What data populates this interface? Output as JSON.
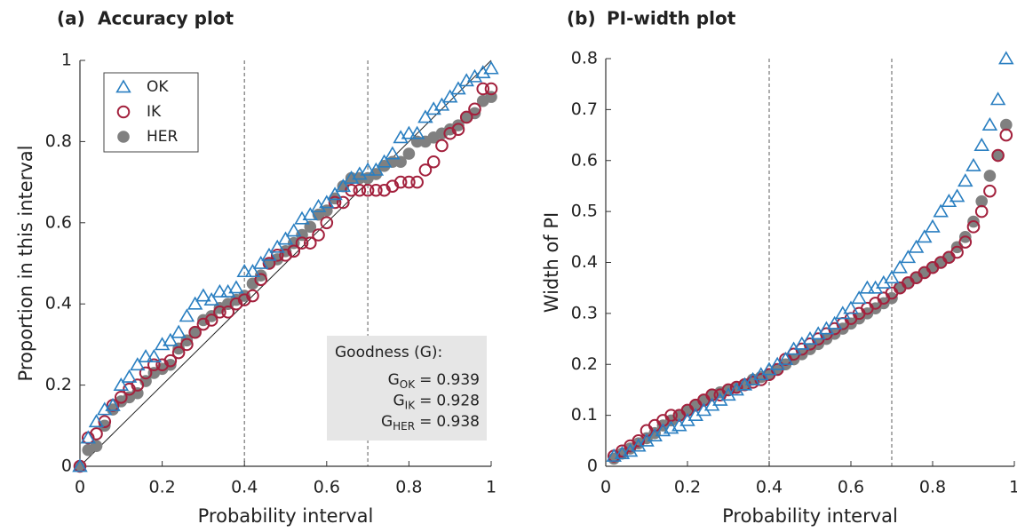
{
  "chart_data": [
    {
      "type": "scatter",
      "panel": "(a)",
      "title": "Accuracy plot",
      "xlabel": "Probability interval",
      "ylabel": "Proportion in this interval",
      "xlim": [
        0,
        1
      ],
      "ylim": [
        0,
        1
      ],
      "xticks": [
        0,
        0.2,
        0.4,
        0.6,
        0.8,
        1
      ],
      "yticks": [
        0,
        0.2,
        0.4,
        0.6,
        0.8,
        1
      ],
      "vlines": [
        0.4,
        0.7
      ],
      "diagonal": true,
      "legend": "upper left",
      "x": [
        0,
        0.02,
        0.04,
        0.06,
        0.08,
        0.1,
        0.12,
        0.14,
        0.16,
        0.18,
        0.2,
        0.22,
        0.24,
        0.26,
        0.28,
        0.3,
        0.32,
        0.34,
        0.36,
        0.38,
        0.4,
        0.42,
        0.44,
        0.46,
        0.48,
        0.5,
        0.52,
        0.54,
        0.56,
        0.58,
        0.6,
        0.62,
        0.64,
        0.66,
        0.68,
        0.7,
        0.72,
        0.74,
        0.76,
        0.78,
        0.8,
        0.82,
        0.84,
        0.86,
        0.88,
        0.9,
        0.92,
        0.94,
        0.96,
        0.98,
        1
      ],
      "series": [
        {
          "name": "OK",
          "color": "#2a7fc1",
          "marker": "triangle",
          "values": [
            0,
            0.07,
            0.11,
            0.14,
            0.15,
            0.2,
            0.22,
            0.25,
            0.27,
            0.27,
            0.3,
            0.31,
            0.33,
            0.37,
            0.4,
            0.42,
            0.41,
            0.43,
            0.43,
            0.44,
            0.48,
            0.48,
            0.5,
            0.52,
            0.54,
            0.56,
            0.58,
            0.61,
            0.62,
            0.64,
            0.65,
            0.67,
            0.69,
            0.71,
            0.72,
            0.73,
            0.73,
            0.75,
            0.77,
            0.81,
            0.82,
            0.82,
            0.86,
            0.88,
            0.89,
            0.91,
            0.93,
            0.95,
            0.96,
            0.97,
            0.98
          ]
        },
        {
          "name": "IK",
          "color": "#a3213d",
          "marker": "circle",
          "values": [
            0,
            0.07,
            0.08,
            0.11,
            0.15,
            0.17,
            0.19,
            0.2,
            0.23,
            0.25,
            0.25,
            0.26,
            0.28,
            0.3,
            0.33,
            0.35,
            0.36,
            0.38,
            0.38,
            0.4,
            0.41,
            0.42,
            0.46,
            0.5,
            0.52,
            0.52,
            0.53,
            0.55,
            0.55,
            0.57,
            0.6,
            0.65,
            0.65,
            0.68,
            0.68,
            0.68,
            0.68,
            0.68,
            0.69,
            0.7,
            0.7,
            0.7,
            0.73,
            0.75,
            0.79,
            0.82,
            0.83,
            0.86,
            0.88,
            0.93,
            0.93
          ]
        },
        {
          "name": "HER",
          "color": "#808080",
          "marker": "dot",
          "values": [
            0,
            0.04,
            0.05,
            0.1,
            0.14,
            0.16,
            0.17,
            0.18,
            0.21,
            0.23,
            0.24,
            0.25,
            0.29,
            0.31,
            0.33,
            0.36,
            0.37,
            0.39,
            0.4,
            0.41,
            0.42,
            0.45,
            0.47,
            0.5,
            0.51,
            0.53,
            0.55,
            0.57,
            0.59,
            0.62,
            0.63,
            0.66,
            0.69,
            0.71,
            0.71,
            0.71,
            0.72,
            0.74,
            0.75,
            0.75,
            0.77,
            0.8,
            0.8,
            0.81,
            0.82,
            0.83,
            0.84,
            0.86,
            0.87,
            0.9,
            0.91
          ]
        }
      ],
      "annotation": {
        "title": "Goodness (G):",
        "items": [
          {
            "symbol": "G",
            "subscript": "OK",
            "sign": "=",
            "value": 0.939
          },
          {
            "symbol": "G",
            "subscript": "IK",
            "sign": "=",
            "value": 0.928
          },
          {
            "symbol": "G",
            "subscript": "HER",
            "sign": "=",
            "value": 0.938
          }
        ]
      }
    },
    {
      "type": "scatter",
      "panel": "(b)",
      "title": "PI-width plot",
      "xlabel": "Probability interval",
      "ylabel": "Width of PI",
      "xlim": [
        0,
        1
      ],
      "ylim": [
        0,
        0.8
      ],
      "xticks": [
        0,
        0.2,
        0.4,
        0.6,
        0.8,
        1
      ],
      "yticks": [
        0,
        0.1,
        0.2,
        0.3,
        0.4,
        0.5,
        0.6,
        0.7,
        0.8
      ],
      "vlines": [
        0.4,
        0.7
      ],
      "x": [
        0.02,
        0.04,
        0.06,
        0.08,
        0.1,
        0.12,
        0.14,
        0.16,
        0.18,
        0.2,
        0.22,
        0.24,
        0.26,
        0.28,
        0.3,
        0.32,
        0.34,
        0.36,
        0.38,
        0.4,
        0.42,
        0.44,
        0.46,
        0.48,
        0.5,
        0.52,
        0.54,
        0.56,
        0.58,
        0.6,
        0.62,
        0.64,
        0.66,
        0.68,
        0.7,
        0.72,
        0.74,
        0.76,
        0.78,
        0.8,
        0.82,
        0.84,
        0.86,
        0.88,
        0.9,
        0.92,
        0.94,
        0.96,
        0.98
      ],
      "series": [
        {
          "color": "#2a7fc1",
          "marker": "triangle",
          "values": [
            0.02,
            0.025,
            0.03,
            0.04,
            0.05,
            0.06,
            0.07,
            0.075,
            0.08,
            0.09,
            0.1,
            0.11,
            0.12,
            0.13,
            0.14,
            0.15,
            0.16,
            0.17,
            0.18,
            0.19,
            0.2,
            0.21,
            0.23,
            0.24,
            0.25,
            0.26,
            0.27,
            0.28,
            0.3,
            0.31,
            0.33,
            0.35,
            0.35,
            0.36,
            0.37,
            0.39,
            0.41,
            0.43,
            0.45,
            0.47,
            0.5,
            0.52,
            0.53,
            0.56,
            0.59,
            0.63,
            0.67,
            0.72,
            0.8
          ]
        },
        {
          "color": "#a3213d",
          "marker": "circle",
          "values": [
            0.02,
            0.03,
            0.04,
            0.05,
            0.07,
            0.08,
            0.09,
            0.1,
            0.1,
            0.11,
            0.12,
            0.13,
            0.14,
            0.14,
            0.15,
            0.155,
            0.16,
            0.165,
            0.17,
            0.18,
            0.19,
            0.21,
            0.22,
            0.23,
            0.24,
            0.25,
            0.26,
            0.27,
            0.28,
            0.29,
            0.3,
            0.31,
            0.32,
            0.33,
            0.34,
            0.35,
            0.36,
            0.37,
            0.38,
            0.39,
            0.4,
            0.41,
            0.42,
            0.44,
            0.47,
            0.5,
            0.54,
            0.61,
            0.65
          ]
        },
        {
          "color": "#808080",
          "marker": "dot",
          "values": [
            0.015,
            0.025,
            0.035,
            0.045,
            0.055,
            0.065,
            0.08,
            0.09,
            0.1,
            0.11,
            0.12,
            0.13,
            0.14,
            0.145,
            0.15,
            0.155,
            0.16,
            0.17,
            0.175,
            0.18,
            0.19,
            0.2,
            0.21,
            0.22,
            0.23,
            0.24,
            0.25,
            0.26,
            0.27,
            0.28,
            0.29,
            0.3,
            0.31,
            0.32,
            0.33,
            0.35,
            0.36,
            0.37,
            0.38,
            0.39,
            0.4,
            0.41,
            0.43,
            0.45,
            0.48,
            0.52,
            0.57,
            0.61,
            0.67
          ]
        }
      ]
    }
  ]
}
